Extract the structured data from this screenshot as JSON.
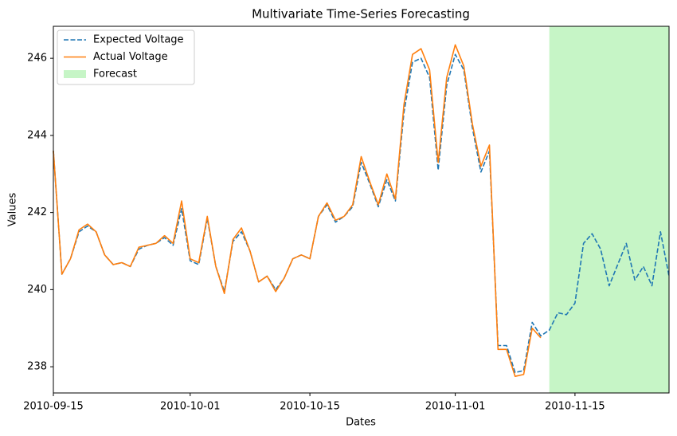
{
  "chart_data": {
    "type": "line",
    "title": "Multivariate Time-Series Forecasting",
    "xlabel": "Dates",
    "ylabel": "Values",
    "x": [
      "2010-09-15",
      "2010-09-16",
      "2010-09-17",
      "2010-09-18",
      "2010-09-19",
      "2010-09-20",
      "2010-09-21",
      "2010-09-22",
      "2010-09-23",
      "2010-09-24",
      "2010-09-25",
      "2010-09-26",
      "2010-09-27",
      "2010-09-28",
      "2010-09-29",
      "2010-09-30",
      "2010-10-01",
      "2010-10-02",
      "2010-10-03",
      "2010-10-04",
      "2010-10-05",
      "2010-10-06",
      "2010-10-07",
      "2010-10-08",
      "2010-10-09",
      "2010-10-10",
      "2010-10-11",
      "2010-10-12",
      "2010-10-13",
      "2010-10-14",
      "2010-10-15",
      "2010-10-16",
      "2010-10-17",
      "2010-10-18",
      "2010-10-19",
      "2010-10-20",
      "2010-10-21",
      "2010-10-22",
      "2010-10-23",
      "2010-10-24",
      "2010-10-25",
      "2010-10-26",
      "2010-10-27",
      "2010-10-28",
      "2010-10-29",
      "2010-10-30",
      "2010-10-31",
      "2010-11-01",
      "2010-11-02",
      "2010-11-03",
      "2010-11-04",
      "2010-11-05",
      "2010-11-06",
      "2010-11-07",
      "2010-11-08",
      "2010-11-09",
      "2010-11-10",
      "2010-11-11",
      "2010-11-12",
      "2010-11-13",
      "2010-11-14",
      "2010-11-15",
      "2010-11-16",
      "2010-11-17",
      "2010-11-18",
      "2010-11-19",
      "2010-11-20",
      "2010-11-21",
      "2010-11-22",
      "2010-11-23",
      "2010-11-24",
      "2010-11-25",
      "2010-11-26"
    ],
    "series": [
      {
        "name": "Expected Voltage",
        "color": "#1f77b4",
        "dashed": true,
        "values": [
          243.6,
          240.4,
          240.8,
          241.5,
          241.65,
          241.5,
          240.9,
          240.65,
          240.7,
          240.6,
          241.05,
          241.15,
          241.2,
          241.35,
          241.15,
          242.1,
          240.75,
          240.65,
          241.85,
          240.6,
          239.95,
          241.25,
          241.5,
          241.0,
          240.2,
          240.35,
          240.0,
          240.3,
          240.8,
          240.9,
          240.8,
          241.9,
          242.2,
          241.75,
          241.9,
          242.15,
          243.3,
          242.75,
          242.15,
          242.85,
          242.3,
          244.6,
          245.9,
          246.0,
          245.5,
          243.1,
          245.3,
          246.1,
          245.7,
          244.2,
          243.05,
          243.6,
          238.55,
          238.55,
          237.85,
          237.9,
          239.15,
          238.8,
          238.95,
          239.4,
          239.35,
          239.65,
          241.2,
          241.45,
          241.05,
          240.1,
          240.65,
          241.2,
          240.25,
          240.6,
          240.1,
          241.5,
          240.35
        ]
      },
      {
        "name": "Actual Voltage",
        "color": "#ff7f0e",
        "dashed": false,
        "values": [
          243.6,
          240.4,
          240.8,
          241.55,
          241.7,
          241.5,
          240.9,
          240.65,
          240.7,
          240.6,
          241.1,
          241.15,
          241.2,
          241.4,
          241.2,
          242.3,
          240.8,
          240.7,
          241.9,
          240.6,
          239.9,
          241.3,
          241.6,
          241.0,
          240.2,
          240.35,
          239.95,
          240.3,
          240.8,
          240.9,
          240.8,
          241.9,
          242.25,
          241.8,
          241.9,
          242.2,
          243.45,
          242.8,
          242.2,
          243.0,
          242.35,
          244.8,
          246.1,
          246.25,
          245.7,
          243.3,
          245.5,
          246.35,
          245.8,
          244.3,
          243.2,
          243.75,
          238.45,
          238.45,
          237.75,
          237.8,
          239.0,
          238.75,
          null,
          null,
          null,
          null,
          null,
          null,
          null,
          null,
          null,
          null,
          null,
          null,
          null,
          null,
          null
        ]
      }
    ],
    "shaded_region": {
      "name": "Forecast",
      "color": "#c6f5c6",
      "x": [
        "2010-11-12",
        "2010-11-26"
      ]
    },
    "xlim": [
      "2010-09-15",
      "2010-11-26"
    ],
    "xticks": [
      "2010-09-15",
      "2010-10-01",
      "2010-10-15",
      "2010-11-01",
      "2010-11-15"
    ],
    "ylim": [
      237.32,
      246.83
    ],
    "yticks": [
      238,
      240,
      242,
      244,
      246
    ],
    "grid": false,
    "legend": "upper left"
  }
}
